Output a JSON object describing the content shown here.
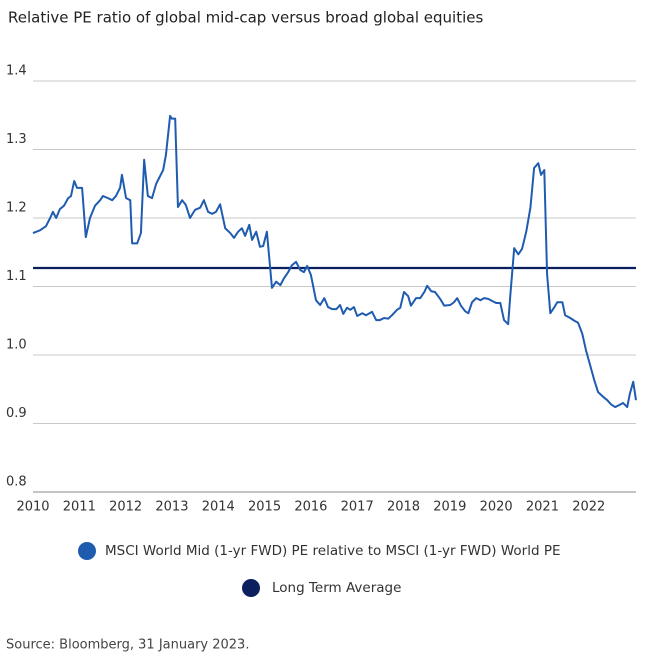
{
  "chart_data": {
    "type": "line",
    "title": "Relative PE ratio of global mid-cap versus broad global equities",
    "source": "Source: Bloomberg, 31 January 2023.",
    "xlim": [
      2010,
      2023.02
    ],
    "xticks": [
      2010,
      2011,
      2012,
      2013,
      2014,
      2015,
      2016,
      2017,
      2018,
      2019,
      2020,
      2021,
      2022
    ],
    "ylim": [
      0.8,
      1.4
    ],
    "yticks": [
      0.8,
      0.9,
      {
        "value": 1.0,
        "label": "1.0"
      },
      1.1,
      1.2,
      1.3,
      1.4
    ],
    "grid": true,
    "series": [
      {
        "name": "MSCI World Mid (1-yr FWD) PE relative to MSCI (1-yr FWD) World PE",
        "color": "#1f5cb0",
        "x": [
          2010.0,
          2010.15,
          2010.28,
          2010.37,
          2010.43,
          2010.5,
          2010.58,
          2010.67,
          2010.76,
          2010.82,
          2010.89,
          2010.95,
          2011.06,
          2011.14,
          2011.23,
          2011.34,
          2011.45,
          2011.51,
          2011.62,
          2011.71,
          2011.79,
          2011.88,
          2011.92,
          2012.01,
          2012.1,
          2012.14,
          2012.25,
          2012.33,
          2012.4,
          2012.48,
          2012.57,
          2012.66,
          2012.81,
          2012.87,
          2012.96,
          2013.0,
          2013.07,
          2013.13,
          2013.22,
          2013.3,
          2013.39,
          2013.5,
          2013.61,
          2013.69,
          2013.78,
          2013.87,
          2013.95,
          2014.04,
          2014.15,
          2014.26,
          2014.34,
          2014.43,
          2014.51,
          2014.58,
          2014.67,
          2014.73,
          2014.82,
          2014.9,
          2014.97,
          2015.05,
          2015.16,
          2015.25,
          2015.34,
          2015.42,
          2015.51,
          2015.59,
          2015.68,
          2015.77,
          2015.85,
          2015.92,
          2016.0,
          2016.11,
          2016.2,
          2016.29,
          2016.37,
          2016.46,
          2016.55,
          2016.63,
          2016.7,
          2016.78,
          2016.85,
          2016.93,
          2017.0,
          2017.11,
          2017.19,
          2017.32,
          2017.41,
          2017.49,
          2017.58,
          2017.67,
          2017.75,
          2017.86,
          2017.93,
          2018.01,
          2018.1,
          2018.16,
          2018.27,
          2018.36,
          2018.45,
          2018.51,
          2018.6,
          2018.68,
          2018.79,
          2018.88,
          2019.01,
          2019.09,
          2019.16,
          2019.24,
          2019.33,
          2019.4,
          2019.48,
          2019.57,
          2019.66,
          2019.74,
          2019.83,
          2019.91,
          2020.0,
          2020.09,
          2020.17,
          2020.26,
          2020.3,
          2020.39,
          2020.48,
          2020.56,
          2020.65,
          2020.74,
          2020.82,
          2020.91,
          2020.97,
          2021.04,
          2021.1,
          2021.17,
          2021.25,
          2021.32,
          2021.43,
          2021.49,
          2021.6,
          2021.69,
          2021.77,
          2021.86,
          2021.94,
          2022.03,
          2022.12,
          2022.2,
          2022.31,
          2022.4,
          2022.48,
          2022.57,
          2022.66,
          2022.74,
          2022.83,
          2022.89,
          2022.96,
          2023.02
        ],
        "values": [
          1.178,
          1.182,
          1.188,
          1.2,
          1.209,
          1.2,
          1.213,
          1.218,
          1.229,
          1.232,
          1.254,
          1.244,
          1.244,
          1.172,
          1.2,
          1.218,
          1.226,
          1.232,
          1.229,
          1.226,
          1.232,
          1.244,
          1.263,
          1.229,
          1.226,
          1.163,
          1.163,
          1.178,
          1.285,
          1.232,
          1.229,
          1.25,
          1.27,
          1.292,
          1.349,
          1.345,
          1.345,
          1.216,
          1.226,
          1.219,
          1.2,
          1.212,
          1.215,
          1.226,
          1.209,
          1.206,
          1.209,
          1.22,
          1.185,
          1.178,
          1.171,
          1.18,
          1.185,
          1.174,
          1.19,
          1.168,
          1.18,
          1.158,
          1.159,
          1.18,
          1.098,
          1.107,
          1.102,
          1.112,
          1.121,
          1.131,
          1.136,
          1.124,
          1.121,
          1.13,
          1.117,
          1.08,
          1.073,
          1.083,
          1.07,
          1.067,
          1.067,
          1.073,
          1.06,
          1.069,
          1.066,
          1.07,
          1.057,
          1.061,
          1.058,
          1.063,
          1.051,
          1.051,
          1.054,
          1.053,
          1.058,
          1.066,
          1.069,
          1.092,
          1.086,
          1.072,
          1.083,
          1.083,
          1.092,
          1.101,
          1.093,
          1.092,
          1.082,
          1.072,
          1.073,
          1.077,
          1.083,
          1.072,
          1.064,
          1.061,
          1.077,
          1.083,
          1.08,
          1.083,
          1.082,
          1.079,
          1.076,
          1.076,
          1.051,
          1.045,
          1.082,
          1.156,
          1.147,
          1.155,
          1.18,
          1.215,
          1.273,
          1.28,
          1.263,
          1.27,
          1.118,
          1.061,
          1.069,
          1.077,
          1.077,
          1.058,
          1.054,
          1.05,
          1.047,
          1.031,
          1.007,
          0.985,
          0.963,
          0.946,
          0.939,
          0.934,
          0.928,
          0.924,
          0.927,
          0.93,
          0.924,
          0.944,
          0.961,
          0.934
        ]
      }
    ],
    "average": {
      "name": "Long Term Average",
      "color": "#0b1f5e",
      "value": 1.127
    }
  }
}
